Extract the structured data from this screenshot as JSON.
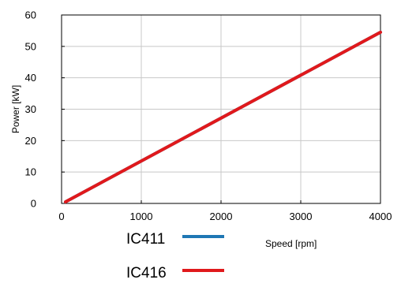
{
  "chart_data": {
    "type": "line",
    "xlabel": "Speed [rpm]",
    "ylabel": "Power [kW]",
    "xlim": [
      0,
      4000
    ],
    "ylim": [
      0,
      60
    ],
    "x_ticks": [
      "0",
      "1000",
      "2000",
      "3000",
      "4000"
    ],
    "y_ticks": [
      "0",
      "10",
      "20",
      "30",
      "40",
      "50",
      "60"
    ],
    "grid": true,
    "legend_position": "bottom",
    "series": [
      {
        "name": "IC411",
        "color": "#1f77b4",
        "x": [
          50,
          4000
        ],
        "y": [
          0.5,
          54.5
        ]
      },
      {
        "name": "IC416",
        "color": "#e0191c",
        "x": [
          50,
          4000
        ],
        "y": [
          0.5,
          54.5
        ]
      }
    ]
  }
}
